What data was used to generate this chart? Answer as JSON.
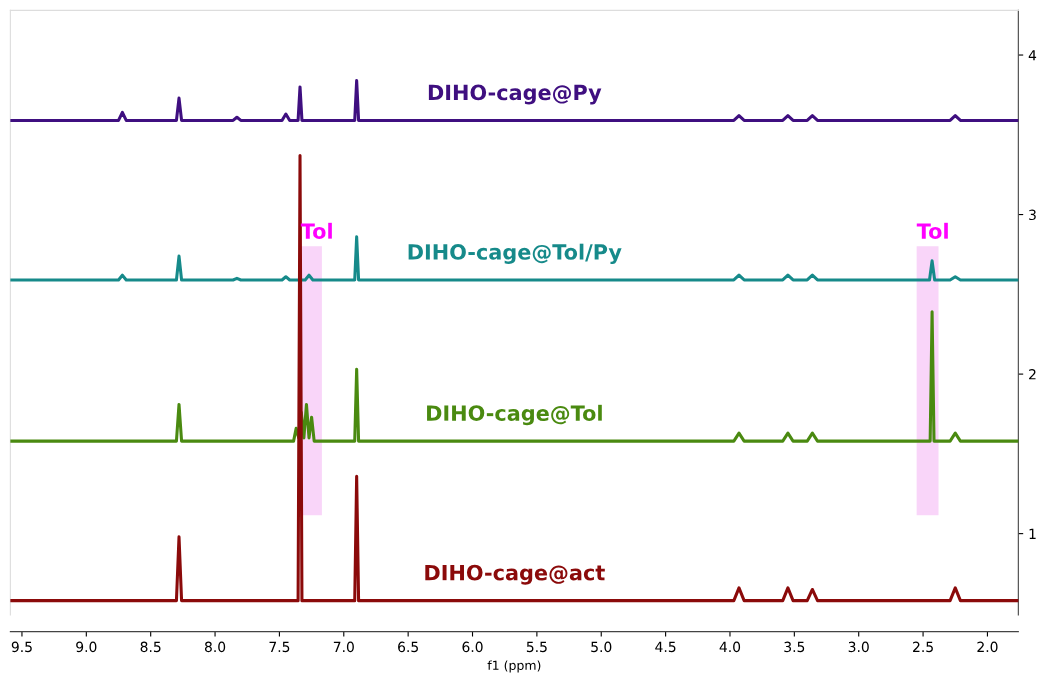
{
  "chart_data": {
    "type": "line",
    "xlabel": "f1 (ppm)",
    "xlim": [
      9.59,
      1.76
    ],
    "xticks": [
      9.5,
      {
        "value": 9,
        "label": "9.0"
      },
      8.5,
      {
        "value": 8,
        "label": "8.0"
      },
      7.5,
      {
        "value": 7,
        "label": "7.0"
      },
      6.5,
      {
        "value": 6,
        "label": "6.0"
      },
      5.5,
      {
        "value": 5,
        "label": "5.0"
      },
      4.5,
      {
        "value": 4,
        "label": "4.0"
      },
      3.5,
      {
        "value": 3,
        "label": "3.0"
      },
      2.5,
      {
        "value": 2,
        "label": "2.0"
      }
    ],
    "ylim": [
      0.49,
      4.28
    ],
    "yticks": [
      1,
      2,
      3,
      4
    ],
    "grid": false,
    "legend": false,
    "series": [
      {
        "name": "DIHO-cage@Py",
        "color": "#3f0f80",
        "x": [
          9.59,
          8.75,
          8.72,
          8.69,
          8.3,
          8.28,
          8.26,
          7.86,
          7.83,
          7.8,
          7.48,
          7.45,
          7.42,
          7.355,
          7.34,
          7.325,
          6.915,
          6.9,
          6.885,
          3.97,
          3.93,
          3.89,
          3.59,
          3.55,
          3.51,
          3.4,
          3.36,
          3.32,
          2.29,
          2.25,
          2.21,
          1.76
        ],
        "values": [
          3.59,
          3.59,
          3.64,
          3.59,
          3.59,
          3.73,
          3.59,
          3.59,
          3.61,
          3.59,
          3.59,
          3.63,
          3.59,
          3.59,
          3.8,
          3.59,
          3.59,
          3.84,
          3.59,
          3.59,
          3.62,
          3.59,
          3.59,
          3.62,
          3.59,
          3.59,
          3.62,
          3.59,
          3.59,
          3.62,
          3.59,
          3.59
        ]
      },
      {
        "name": "DIHO-cage@Tol/Py",
        "color": "#168a8a",
        "x": [
          9.59,
          8.75,
          8.72,
          8.69,
          8.3,
          8.28,
          8.26,
          7.86,
          7.83,
          7.8,
          7.48,
          7.45,
          7.42,
          7.3,
          7.27,
          7.24,
          6.915,
          6.9,
          6.885,
          3.97,
          3.93,
          3.89,
          3.59,
          3.55,
          3.51,
          3.4,
          3.36,
          3.32,
          2.45,
          2.43,
          2.41,
          2.29,
          2.25,
          2.21,
          1.76
        ],
        "values": [
          2.59,
          2.59,
          2.62,
          2.59,
          2.59,
          2.74,
          2.59,
          2.59,
          2.6,
          2.59,
          2.59,
          2.61,
          2.59,
          2.59,
          2.62,
          2.59,
          2.59,
          2.86,
          2.59,
          2.59,
          2.62,
          2.59,
          2.59,
          2.62,
          2.59,
          2.59,
          2.62,
          2.59,
          2.59,
          2.71,
          2.59,
          2.59,
          2.61,
          2.59,
          2.59
        ]
      },
      {
        "name": "DIHO-cage@Tol",
        "color": "#4a8a10",
        "x": [
          9.59,
          8.3,
          8.28,
          8.26,
          7.39,
          7.37,
          7.35,
          7.33,
          7.31,
          7.29,
          7.27,
          7.25,
          7.23,
          6.915,
          6.9,
          6.885,
          3.97,
          3.93,
          3.89,
          3.59,
          3.55,
          3.51,
          3.4,
          3.36,
          3.32,
          2.445,
          2.43,
          2.415,
          2.29,
          2.25,
          2.21,
          1.76
        ],
        "values": [
          1.58,
          1.58,
          1.81,
          1.58,
          1.58,
          1.66,
          1.6,
          1.76,
          1.6,
          1.81,
          1.6,
          1.73,
          1.58,
          1.58,
          2.03,
          1.58,
          1.58,
          1.63,
          1.58,
          1.58,
          1.63,
          1.58,
          1.58,
          1.63,
          1.58,
          1.58,
          2.39,
          1.58,
          1.58,
          1.63,
          1.58,
          1.58
        ]
      },
      {
        "name": "DIHO-cage@act",
        "color": "#8b0a0a",
        "x": [
          9.59,
          8.3,
          8.28,
          8.26,
          7.355,
          7.34,
          7.325,
          6.915,
          6.9,
          6.885,
          3.97,
          3.93,
          3.89,
          3.59,
          3.55,
          3.51,
          3.4,
          3.36,
          3.32,
          2.29,
          2.25,
          2.21,
          1.76
        ],
        "values": [
          0.58,
          0.58,
          0.98,
          0.58,
          0.58,
          3.37,
          0.58,
          0.58,
          1.36,
          0.58,
          0.58,
          0.66,
          0.58,
          0.58,
          0.66,
          0.58,
          0.58,
          0.65,
          0.58,
          0.58,
          0.66,
          0.58,
          0.58
        ]
      }
    ],
    "bands": [
      {
        "axis": "x",
        "from": 7.33,
        "to": 7.17,
        "label": "Tol",
        "color": "#f9d5f9"
      },
      {
        "axis": "x",
        "from": 2.55,
        "to": 2.38,
        "label": "Tol",
        "color": "#f9d5f9"
      }
    ]
  }
}
